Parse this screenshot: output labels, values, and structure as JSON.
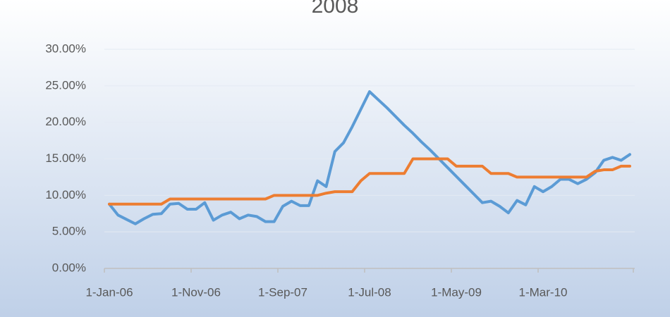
{
  "chart_data": {
    "type": "line",
    "title": "2008",
    "categories": [
      "1-Jan-06",
      null,
      null,
      null,
      null,
      null,
      null,
      null,
      null,
      null,
      "1-Nov-06",
      null,
      null,
      null,
      null,
      null,
      null,
      null,
      null,
      null,
      "1-Sep-07",
      null,
      null,
      null,
      null,
      null,
      null,
      null,
      null,
      null,
      "1-Jul-08",
      null,
      null,
      null,
      null,
      null,
      null,
      null,
      null,
      null,
      "1-May-09",
      null,
      null,
      null,
      null,
      null,
      null,
      null,
      null,
      null,
      "1-Mar-10",
      null,
      null,
      null,
      null,
      null,
      null,
      null,
      null,
      null,
      null
    ],
    "series": [
      {
        "color": "#5b9bd5",
        "values": [
          8.8,
          7.3,
          6.7,
          6.1,
          6.8,
          7.4,
          7.5,
          8.8,
          8.9,
          8.1,
          8.1,
          9.0,
          6.6,
          7.3,
          7.7,
          6.8,
          7.3,
          7.1,
          6.4,
          6.4,
          8.5,
          9.2,
          8.6,
          8.6,
          12.0,
          11.2,
          16.0,
          17.2,
          19.4,
          21.8,
          24.2,
          23.1,
          22.0,
          20.8,
          19.6,
          18.5,
          17.3,
          16.2,
          15.0,
          13.8,
          12.6,
          11.4,
          10.2,
          9.0,
          9.2,
          8.5,
          7.6,
          9.3,
          8.7,
          11.2,
          10.5,
          11.2,
          12.2,
          12.2,
          11.6,
          12.2,
          13.1,
          14.8,
          15.2,
          14.8,
          15.6
        ]
      },
      {
        "color": "#ed7d31",
        "values": [
          8.8,
          8.8,
          8.8,
          8.8,
          8.8,
          8.8,
          8.8,
          9.5,
          9.5,
          9.5,
          9.5,
          9.5,
          9.5,
          9.5,
          9.5,
          9.5,
          9.5,
          9.5,
          9.5,
          10.0,
          10.0,
          10.0,
          10.0,
          10.0,
          10.0,
          10.3,
          10.5,
          10.5,
          10.5,
          12.0,
          13.0,
          13.0,
          13.0,
          13.0,
          13.0,
          15.0,
          15.0,
          15.0,
          15.0,
          15.0,
          14.0,
          14.0,
          14.0,
          14.0,
          13.0,
          13.0,
          13.0,
          12.5,
          12.5,
          12.5,
          12.5,
          12.5,
          12.5,
          12.5,
          12.5,
          12.5,
          13.3,
          13.5,
          13.5,
          14.0,
          14.0
        ]
      }
    ],
    "ylim": [
      0,
      30
    ],
    "yticks": [
      {
        "value": 0,
        "label": "0.00%"
      },
      {
        "value": 5,
        "label": "5.00%"
      },
      {
        "value": 10,
        "label": "10.00%"
      },
      {
        "value": 15,
        "label": "15.00%"
      },
      {
        "value": 20,
        "label": "20.00%"
      },
      {
        "value": 25,
        "label": "25.00%"
      },
      {
        "value": 30,
        "label": "30.00%"
      }
    ],
    "grid": true
  }
}
